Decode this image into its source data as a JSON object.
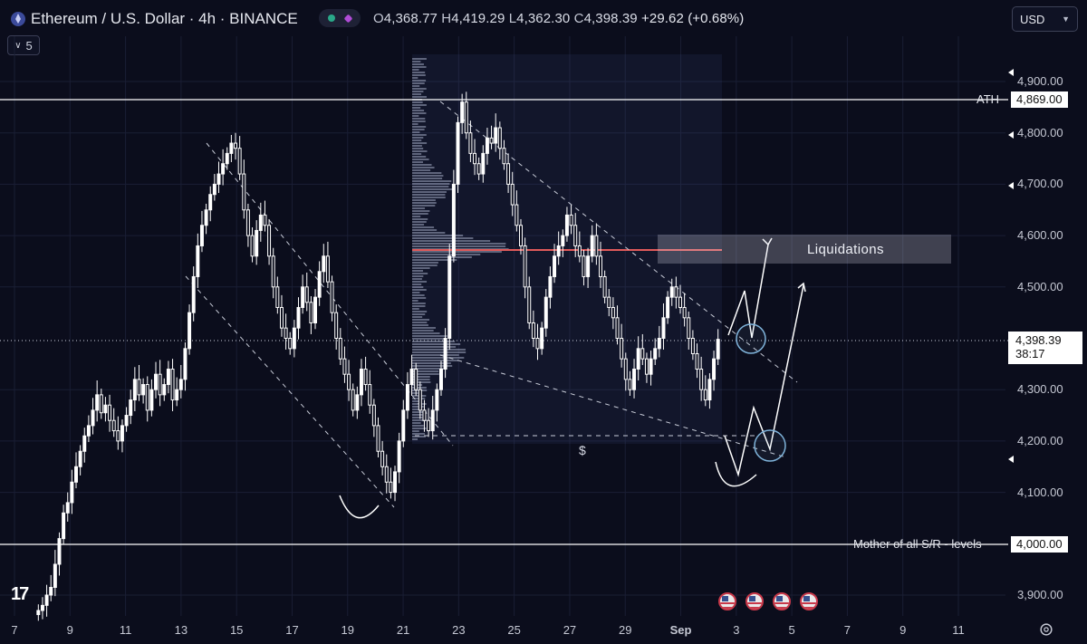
{
  "header": {
    "symbol": "Ethereum / U.S. Dollar · 4h · BINANCE",
    "open_label": "O",
    "open": "4,368.77",
    "high_label": "H",
    "high": "4,419.29",
    "low_label": "L",
    "low": "4,362.30",
    "close_label": "C",
    "close": "4,398.39",
    "change": "+29.62 (+0.68%)",
    "indicator_count": "5",
    "currency": "USD"
  },
  "levels": {
    "ath_label": "ATH",
    "ath_value": "4,869.00",
    "sr_label": "Mother of all S/R - levels",
    "sr_value": "4,000.00",
    "current_price": "4,398.39",
    "countdown": "38:17"
  },
  "annotations": {
    "liquidations": "Liquidations",
    "dollar": "$"
  },
  "colors": {
    "background": "#0b0d1c",
    "candle": "#ffffff",
    "liquidation_line": "#e05a5a",
    "circle": "#7fb3da"
  },
  "chart_data": {
    "type": "candlestick",
    "x_tick_labels": [
      "7",
      "9",
      "11",
      "13",
      "15",
      "17",
      "19",
      "21",
      "23",
      "25",
      "27",
      "29",
      "Sep",
      "3",
      "5",
      "7",
      "9",
      "11"
    ],
    "y_tick_labels": [
      "4,900.00",
      "4,800.00",
      "4,700.00",
      "4,600.00",
      "4,500.00",
      "4,300.00",
      "4,200.00",
      "4,100.00",
      "3,900.00"
    ],
    "ylim": [
      3860,
      4960
    ],
    "horizontal_levels": [
      4869,
      4000,
      4575
    ],
    "current": 4398.39,
    "series": [
      {
        "values": [
          3870,
          3880,
          3900,
          3915,
          3960,
          4010,
          4060,
          4080,
          4120,
          4150,
          4180,
          4210,
          4230,
          4260,
          4290,
          4255,
          4270,
          4240,
          4220,
          4200,
          4230,
          4250,
          4280,
          4320,
          4290,
          4310,
          4260,
          4300,
          4330,
          4290,
          4310,
          4340,
          4280,
          4300,
          4320,
          4380,
          4450,
          4520,
          4580,
          4620,
          4650,
          4680,
          4700,
          4720,
          4740,
          4760,
          4780,
          4770,
          4720,
          4650,
          4600,
          4560,
          4610,
          4640,
          4620,
          4560,
          4500,
          4460,
          4420,
          4400,
          4380,
          4420,
          4460,
          4500,
          4470,
          4430,
          4480,
          4530,
          4560,
          4510,
          4450,
          4400,
          4360,
          4330,
          4300,
          4260,
          4290,
          4340,
          4310,
          4270,
          4230,
          4180,
          4150,
          4120,
          4100,
          4140,
          4200,
          4260,
          4310,
          4340,
          4300,
          4260,
          4240,
          4220,
          4260,
          4300,
          4340,
          4400,
          4560,
          4700,
          4820,
          4860,
          4800,
          4760,
          4740,
          4720,
          4760,
          4790,
          4780,
          4810,
          4770,
          4740,
          4700,
          4660,
          4620,
          4580,
          4500,
          4430,
          4400,
          4380,
          4420,
          4480,
          4520,
          4560,
          4580,
          4600,
          4640,
          4620,
          4580,
          4560,
          4520,
          4560,
          4600,
          4560,
          4520,
          4480,
          4460,
          4440,
          4400,
          4360,
          4320,
          4300,
          4340,
          4380,
          4360,
          4330,
          4360,
          4380,
          4400,
          4440,
          4480,
          4500,
          4480,
          4460,
          4440,
          4400,
          4370,
          4340,
          4300,
          4280,
          4320,
          4360,
          4398
        ]
      }
    ]
  }
}
